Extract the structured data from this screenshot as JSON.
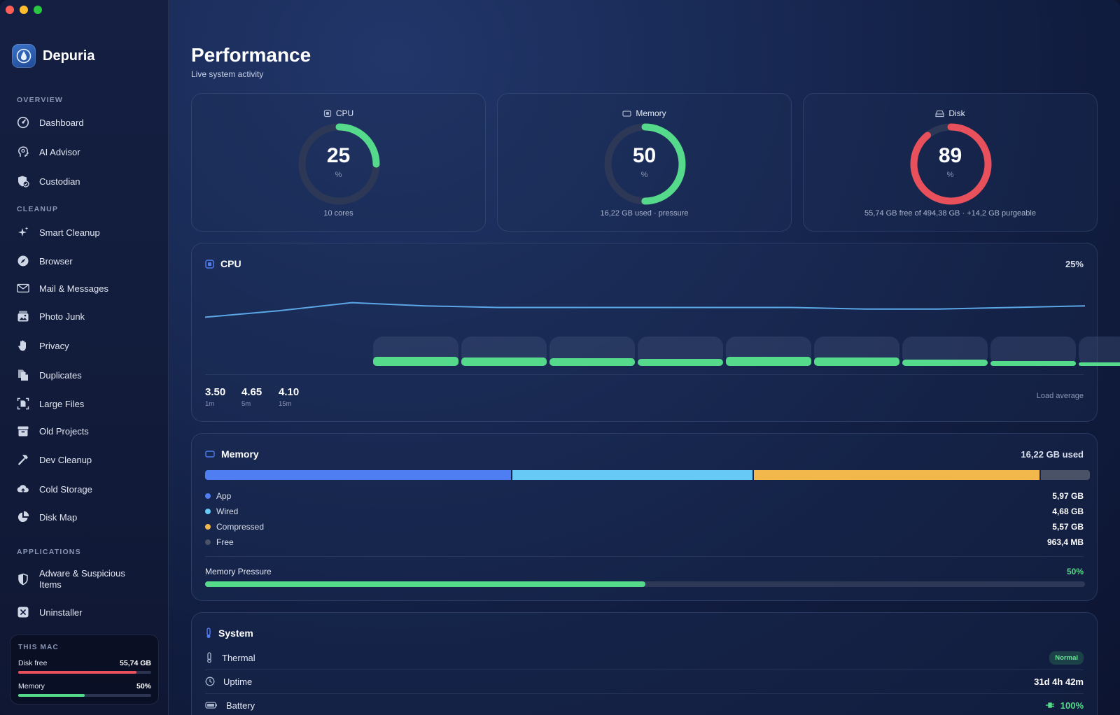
{
  "app": {
    "name": "Depuria",
    "colors": {
      "accent": "#4f7ef2",
      "good": "#55d98a",
      "danger": "#e8505b",
      "warning": "#f2b84b",
      "info": "#66c9f6"
    }
  },
  "sidebar": {
    "sections": [
      {
        "title": "OVERVIEW",
        "items": [
          {
            "label": "Dashboard",
            "icon": "speedometer-icon"
          },
          {
            "label": "AI Advisor",
            "icon": "ai-head-icon"
          },
          {
            "label": "Custodian",
            "icon": "shield-check-icon"
          }
        ]
      },
      {
        "title": "CLEANUP",
        "items": [
          {
            "label": "Smart Cleanup",
            "icon": "sparkles-icon"
          },
          {
            "label": "Browser",
            "icon": "compass-icon"
          },
          {
            "label": "Mail & Messages",
            "icon": "envelope-icon"
          },
          {
            "label": "Photo Junk",
            "icon": "photo-stack-icon"
          },
          {
            "label": "Privacy",
            "icon": "hand-icon"
          },
          {
            "label": "Duplicates",
            "icon": "duplicate-docs-icon"
          },
          {
            "label": "Large Files",
            "icon": "large-file-icon"
          },
          {
            "label": "Old Projects",
            "icon": "archive-box-icon"
          },
          {
            "label": "Dev Cleanup",
            "icon": "hammer-icon"
          },
          {
            "label": "Cold Storage",
            "icon": "cloud-upload-icon"
          },
          {
            "label": "Disk Map",
            "icon": "pie-chart-icon"
          }
        ]
      },
      {
        "title": "APPLICATIONS",
        "items": [
          {
            "label_line1": "Adware & Suspicious",
            "label_line2": "Items",
            "icon": "half-shield-icon"
          },
          {
            "label": "Uninstaller",
            "icon": "x-square-icon"
          }
        ]
      }
    ],
    "this_mac": {
      "title": "THIS MAC",
      "disk_label": "Disk free",
      "disk_value": "55,74 GB",
      "disk_fill": 0.89,
      "memory_label": "Memory",
      "memory_value": "50%",
      "memory_fill": 0.5
    }
  },
  "header": {
    "title": "Performance",
    "subtitle": "Live system activity"
  },
  "gauges": [
    {
      "label": "CPU",
      "value": "25",
      "unit": "%",
      "fraction": 0.25,
      "color": "#55d98a",
      "footer": "10 cores",
      "icon": "cpu-chip-icon"
    },
    {
      "label": "Memory",
      "value": "50",
      "unit": "%",
      "fraction": 0.5,
      "color": "#55d98a",
      "footer": "16,22 GB used · pressure",
      "icon": "memory-icon"
    },
    {
      "label": "Disk",
      "value": "89",
      "unit": "%",
      "fraction": 0.89,
      "color": "#e8505b",
      "footer": "55,74 GB free of 494,38 GB · +14,2 GB purgeable",
      "icon": "disk-drive-icon"
    }
  ],
  "cpu_panel": {
    "title": "CPU",
    "value": "25%",
    "history": [
      0.28,
      0.32,
      0.37,
      0.35,
      0.34,
      0.34,
      0.34,
      0.34,
      0.34,
      0.33,
      0.33,
      0.34,
      0.35
    ],
    "cores": [
      0.28,
      0.26,
      0.24,
      0.22,
      0.3,
      0.26,
      0.2,
      0.15,
      0.11,
      0.08
    ],
    "load_average": {
      "label": "Load average",
      "values": [
        {
          "value": "3.50",
          "label": "1m"
        },
        {
          "value": "4.65",
          "label": "5m"
        },
        {
          "value": "4.10",
          "label": "15m"
        }
      ]
    }
  },
  "memory_panel": {
    "title": "Memory",
    "used": "16,22 GB used",
    "segments": [
      {
        "label": "App",
        "value": "5,97 GB",
        "gb": 5.97,
        "color": "#4f7ef2"
      },
      {
        "label": "Wired",
        "value": "4,68 GB",
        "gb": 4.68,
        "color": "#66c9f6"
      },
      {
        "label": "Compressed",
        "value": "5,57 GB",
        "gb": 5.57,
        "color": "#f2b84b"
      },
      {
        "label": "Free",
        "value": "963,4 MB",
        "gb": 0.96,
        "color": "#4a5268"
      }
    ],
    "pressure_label": "Memory Pressure",
    "pressure_value": "50%",
    "pressure_fraction": 0.5
  },
  "system_panel": {
    "title": "System",
    "rows": [
      {
        "label": "Thermal",
        "value": "Normal",
        "icon": "thermometer-icon"
      },
      {
        "label": "Uptime",
        "value": "31d 4h 42m",
        "icon": "clock-icon"
      },
      {
        "label": "Battery",
        "value": "100%",
        "icon": "battery-icon"
      }
    ]
  }
}
